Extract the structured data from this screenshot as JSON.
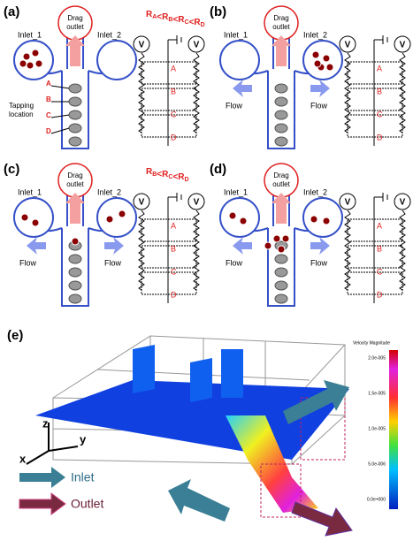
{
  "panels": [
    {
      "label": "(a)",
      "outlet": [
        "Drag",
        "outlet"
      ],
      "inlet_1": "Inlet_1",
      "inlet_2": "Inlet_2",
      "tapping": [
        "Tapping",
        "location"
      ],
      "channel_nodes": [
        "A",
        "B",
        "C",
        "D"
      ],
      "equation": [
        {
          "text": "R",
          "sub": "A"
        },
        {
          "text": "<"
        },
        {
          "text": "R",
          "sub": "B"
        },
        {
          "text": "<"
        },
        {
          "text": "R",
          "sub": "C"
        },
        {
          "text": "<"
        },
        {
          "text": "R",
          "sub": "D"
        }
      ],
      "voltmeters": [
        "V",
        "V"
      ],
      "circuit_nodes": [
        "A",
        "B",
        "C",
        "D"
      ]
    },
    {
      "label": "(b)",
      "outlet": [
        "Drag",
        "outlet"
      ],
      "inlet_1": "Inlet_1",
      "inlet_2": "Inlet_2",
      "flow": [
        "Flow",
        "Flow"
      ],
      "voltmeters": [
        "V",
        "V"
      ],
      "circuit_nodes": [
        "A",
        "B",
        "C",
        "D"
      ]
    },
    {
      "label": "(c)",
      "outlet": [
        "Drag",
        "outlet"
      ],
      "inlet_1": "Inlet_1",
      "inlet_2": "Inlet_2",
      "flow": [
        "Flow",
        "Flow"
      ],
      "equation": [
        {
          "text": "R",
          "sub": "B"
        },
        {
          "text": "<"
        },
        {
          "text": "R",
          "sub": "C"
        },
        {
          "text": "<"
        },
        {
          "text": "R",
          "sub": "D"
        }
      ],
      "voltmeters": [
        "V",
        "V"
      ],
      "circuit_nodes": [
        "A",
        "B",
        "C",
        "D"
      ]
    },
    {
      "label": "(d)",
      "outlet": [
        "Drag",
        "outlet"
      ],
      "inlet_1": "Inlet_1",
      "inlet_2": "Inlet_2",
      "flow": [
        "Flow",
        "Flow"
      ],
      "voltmeters": [
        "V",
        "V"
      ],
      "circuit_nodes": [
        "A",
        "B",
        "C",
        "D"
      ]
    }
  ],
  "simulation": {
    "label": "(e)",
    "axes": [
      "z",
      "x",
      "y"
    ],
    "legend": [
      "Inlet",
      "Outlet"
    ],
    "colorbar_title": "Velocity Magnitude",
    "colorbar_ticks": [
      "2.0e-005",
      "1.5e-005",
      "1.0e-005",
      "5.0e-006",
      "0.0e+000"
    ]
  }
}
